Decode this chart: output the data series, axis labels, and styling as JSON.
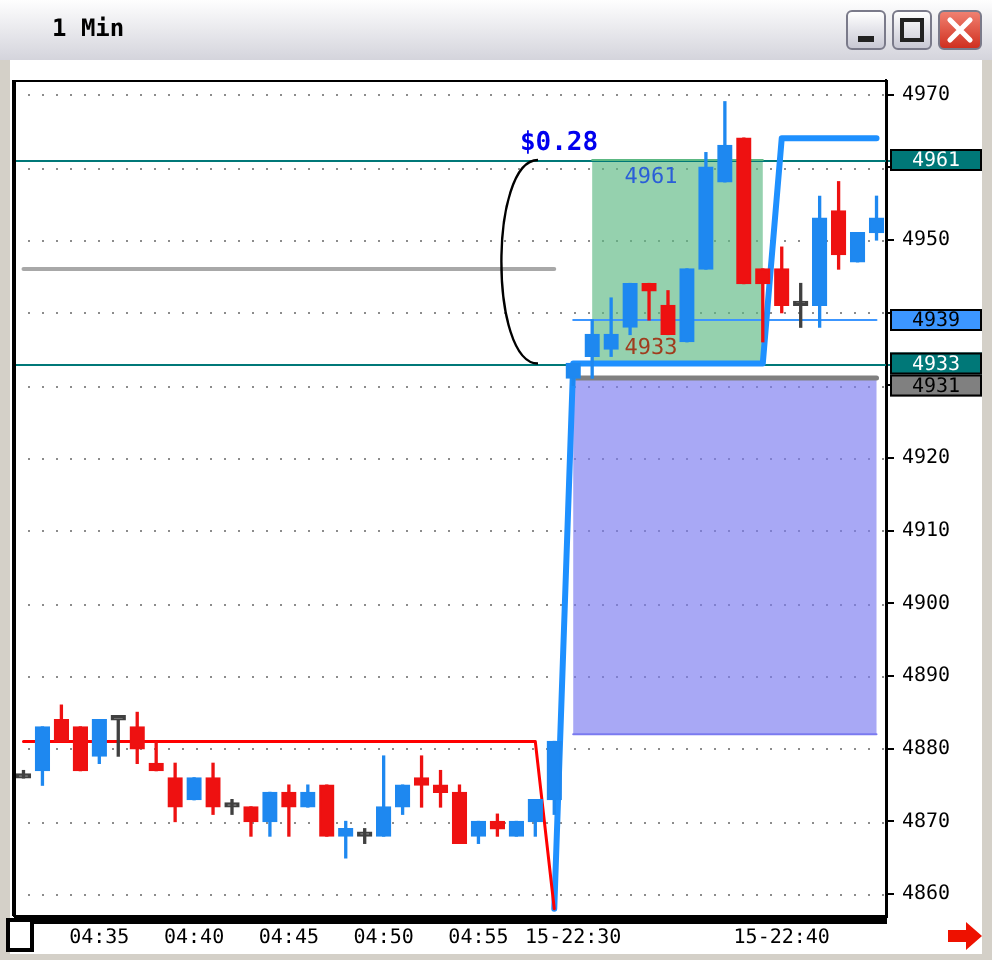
{
  "chart_data": {
    "type": "candlestick",
    "title": "1 Min",
    "categories": [
      null,
      null,
      null,
      null,
      "04:35",
      null,
      null,
      null,
      null,
      "04:40",
      null,
      null,
      null,
      null,
      "04:45",
      null,
      null,
      null,
      null,
      "04:50",
      null,
      null,
      null,
      null,
      "04:55",
      null,
      null,
      null,
      null,
      "15-22:30",
      null,
      null,
      null,
      null,
      null,
      null,
      null,
      null,
      null,
      null,
      "15-22:40",
      null,
      null,
      null,
      null,
      null
    ],
    "ohlc": [
      [
        4876,
        4877,
        4876,
        4876
      ],
      [
        4877,
        4883,
        4875,
        4883
      ],
      [
        4884,
        4886,
        4881,
        4881
      ],
      [
        4883,
        4883,
        4877,
        4877
      ],
      [
        4879,
        4884,
        4878,
        4884
      ],
      [
        4884,
        4884,
        4879,
        4884
      ],
      [
        4883,
        4885,
        4878,
        4880
      ],
      [
        4878,
        4881,
        4877,
        4877
      ],
      [
        4876,
        4878,
        4870,
        4872
      ],
      [
        4873,
        4876,
        4873,
        4876
      ],
      [
        4876,
        4878,
        4871,
        4872
      ],
      [
        4872,
        4873,
        4871,
        4872
      ],
      [
        4872,
        4872,
        4868,
        4870
      ],
      [
        4870,
        4874,
        4868,
        4874
      ],
      [
        4874,
        4875,
        4868,
        4872
      ],
      [
        4872,
        4875,
        4872,
        4874
      ],
      [
        4875,
        4875,
        4868,
        4868
      ],
      [
        4868,
        4870,
        4865,
        4869
      ],
      [
        4868,
        4869,
        4867,
        4868
      ],
      [
        4868,
        4879,
        4868,
        4872
      ],
      [
        4872,
        4875,
        4871,
        4875
      ],
      [
        4876,
        4879,
        4872,
        4875
      ],
      [
        4875,
        4877,
        4872,
        4874
      ],
      [
        4874,
        4875,
        4867,
        4867
      ],
      [
        4868,
        4870,
        4867,
        4870
      ],
      [
        4870,
        4871,
        4868,
        4869
      ],
      [
        4868,
        4870,
        4868,
        4870
      ],
      [
        4870,
        4873,
        4868,
        4873
      ],
      [
        4873,
        4881,
        4871,
        4881
      ],
      [
        4931,
        4933,
        4930,
        4933
      ],
      [
        4934,
        4939,
        4931,
        4937
      ],
      [
        4935,
        4942,
        4934,
        4937
      ],
      [
        4938,
        4944,
        4937,
        4944
      ],
      [
        4944,
        4944,
        4939,
        4943
      ],
      [
        4941,
        4943,
        4937,
        4937
      ],
      [
        4936,
        4946,
        4936,
        4946
      ],
      [
        4946,
        4962,
        4946,
        4960
      ],
      [
        4958,
        4969,
        4958,
        4963
      ],
      [
        4964,
        4964,
        4944,
        4944
      ],
      [
        4946,
        4946,
        4936,
        4944
      ],
      [
        4946,
        4949,
        4940,
        4941
      ],
      [
        4941,
        4944,
        4938,
        4941
      ],
      [
        4941,
        4956,
        4938,
        4953
      ],
      [
        4954,
        4958,
        4946,
        4948
      ],
      [
        4947,
        4951,
        4947,
        4951
      ],
      [
        4951,
        4956,
        4950,
        4953
      ]
    ],
    "colors": [
      "#404040",
      "#1e88f0",
      "#ee1111",
      "#ee1111",
      "#1e88f0",
      "#404040",
      "#ee1111",
      "#ee1111",
      "#ee1111",
      "#1e88f0",
      "#ee1111",
      "#404040",
      "#ee1111",
      "#1e88f0",
      "#ee1111",
      "#1e88f0",
      "#ee1111",
      "#1e88f0",
      "#404040",
      "#1e88f0",
      "#1e88f0",
      "#ee1111",
      "#ee1111",
      "#ee1111",
      "#1e88f0",
      "#ee1111",
      "#1e88f0",
      "#1e88f0",
      "#1e88f0",
      "#1e88f0",
      "#1e88f0",
      "#1e88f0",
      "#1e88f0",
      "#ee1111",
      "#ee1111",
      "#1e88f0",
      "#1e88f0",
      "#1e88f0",
      "#ee1111",
      "#ee1111",
      "#ee1111",
      "#404040",
      "#1e88f0",
      "#ee1111",
      "#1e88f0",
      "#1e88f0"
    ],
    "series": [
      {
        "type": "line",
        "color": "#ff0000",
        "values": [
          4881,
          4881,
          4881,
          4881,
          4881,
          4881,
          4881,
          4881,
          4881,
          4881,
          4881,
          4881,
          4881,
          4881,
          4881,
          4881,
          4881,
          4881,
          4881,
          4881,
          4881,
          4881,
          4881,
          4881,
          4881,
          4881,
          4881,
          4881,
          4858,
          null,
          null,
          null,
          null,
          null,
          null,
          null,
          null,
          null,
          null,
          null,
          null,
          null,
          null,
          null,
          null,
          null
        ]
      },
      {
        "type": "line",
        "color": "#1e90ff",
        "values": [
          null,
          null,
          null,
          null,
          null,
          null,
          null,
          null,
          null,
          null,
          null,
          null,
          null,
          null,
          null,
          null,
          null,
          null,
          null,
          null,
          null,
          null,
          null,
          null,
          null,
          null,
          null,
          null,
          4858,
          4933,
          4933,
          4933,
          4933,
          4933,
          4933,
          4933,
          4933,
          4933,
          4933,
          4933,
          4964,
          4964,
          4964,
          4964,
          4964,
          4964
        ]
      },
      {
        "type": "line",
        "color": "#a8a8a8",
        "values": [
          4946,
          4946,
          4946,
          4946,
          4946,
          4946,
          4946,
          4946,
          4946,
          4946,
          4946,
          4946,
          4946,
          4946,
          4946,
          4946,
          4946,
          4946,
          4946,
          4946,
          4946,
          4946,
          4946,
          4946,
          4946,
          4946,
          4946,
          4946,
          4946,
          null,
          null,
          null,
          null,
          null,
          null,
          null,
          null,
          null,
          null,
          null,
          null,
          null,
          null,
          null,
          null,
          null
        ]
      },
      {
        "type": "line",
        "color": "#3c96ff",
        "values": [
          null,
          null,
          null,
          null,
          null,
          null,
          null,
          null,
          null,
          null,
          null,
          null,
          null,
          null,
          null,
          null,
          null,
          null,
          null,
          null,
          null,
          null,
          null,
          null,
          null,
          null,
          null,
          null,
          null,
          4939,
          4939,
          4939,
          4939,
          4939,
          4939,
          4939,
          4939,
          4939,
          4939,
          4939,
          4939,
          4939,
          4939,
          4939,
          4939,
          4939
        ],
        "value_labels": [
          null,
          null,
          null,
          null,
          null,
          null,
          null,
          null,
          null,
          null,
          null,
          null,
          null,
          null,
          null,
          null,
          null,
          null,
          null,
          null,
          null,
          null,
          null,
          null,
          null,
          null,
          null,
          null,
          null,
          null,
          null,
          null,
          null,
          null,
          null,
          null,
          null,
          null,
          null,
          null,
          null,
          null,
          null,
          null,
          null,
          "4939"
        ]
      },
      {
        "type": "line",
        "color": "#808080",
        "values": [
          null,
          null,
          null,
          null,
          null,
          null,
          null,
          null,
          null,
          null,
          null,
          null,
          null,
          null,
          null,
          null,
          null,
          null,
          null,
          null,
          null,
          null,
          null,
          null,
          null,
          null,
          null,
          null,
          null,
          4931,
          4931,
          4931,
          4931,
          4931,
          4931,
          4931,
          4931,
          4931,
          4931,
          4931,
          4931,
          4931,
          4931,
          4931,
          4931,
          4931
        ],
        "value_labels": [
          null,
          null,
          null,
          null,
          null,
          null,
          null,
          null,
          null,
          null,
          null,
          null,
          null,
          null,
          null,
          null,
          null,
          null,
          null,
          null,
          null,
          null,
          null,
          null,
          null,
          null,
          null,
          null,
          null,
          null,
          null,
          null,
          null,
          null,
          null,
          null,
          null,
          null,
          null,
          null,
          null,
          null,
          null,
          null,
          null,
          "4931"
        ]
      },
      {
        "type": "line",
        "color": "#7a7af0",
        "values": [
          null,
          null,
          null,
          null,
          null,
          null,
          null,
          null,
          null,
          null,
          null,
          null,
          null,
          null,
          null,
          null,
          null,
          null,
          null,
          null,
          null,
          null,
          null,
          null,
          null,
          null,
          null,
          null,
          null,
          4882,
          4882,
          4882,
          4882,
          4882,
          4882,
          4882,
          4882,
          4882,
          4882,
          4882,
          4882,
          4882,
          4882,
          4882,
          4882,
          4882
        ],
        "lower": [
          null,
          null,
          null,
          null,
          null,
          null,
          null,
          null,
          null,
          null,
          null,
          null,
          null,
          null,
          null,
          null,
          null,
          null,
          null,
          null,
          null,
          null,
          null,
          null,
          null,
          null,
          null,
          null,
          null,
          4882,
          4882,
          4882,
          4882,
          4882,
          4882,
          4882,
          4882,
          4882,
          4882,
          4882,
          4882,
          4882,
          4882,
          4882,
          4882,
          4882
        ],
        "upper": [
          null,
          null,
          null,
          null,
          null,
          null,
          null,
          null,
          null,
          null,
          null,
          null,
          null,
          null,
          null,
          null,
          null,
          null,
          null,
          null,
          null,
          null,
          null,
          null,
          null,
          null,
          null,
          null,
          null,
          4931,
          4931,
          4931,
          4931,
          4931,
          4931,
          4931,
          4931,
          4931,
          4931,
          4931,
          4931,
          4931,
          4931,
          4931,
          4931,
          4931
        ]
      },
      {
        "type": "line",
        "color": "#5cb882",
        "values": [
          null,
          null,
          null,
          null,
          null,
          null,
          null,
          null,
          null,
          null,
          null,
          null,
          null,
          null,
          null,
          null,
          null,
          null,
          null,
          null,
          null,
          null,
          null,
          null,
          null,
          null,
          null,
          null,
          null,
          null,
          4961,
          4961,
          4961,
          4961,
          4961,
          4961,
          4961,
          4961,
          4961,
          4961,
          null,
          null,
          null,
          null,
          null,
          null
        ],
        "lower": [
          null,
          null,
          null,
          null,
          null,
          null,
          null,
          null,
          null,
          null,
          null,
          null,
          null,
          null,
          null,
          null,
          null,
          null,
          null,
          null,
          null,
          null,
          null,
          null,
          null,
          null,
          null,
          null,
          null,
          null,
          4933,
          4933,
          4933,
          4933,
          4933,
          4933,
          4933,
          4933,
          4933,
          4933,
          null,
          null,
          null,
          null,
          null,
          null
        ],
        "upper": [
          null,
          null,
          null,
          null,
          null,
          null,
          null,
          null,
          null,
          null,
          null,
          null,
          null,
          null,
          null,
          null,
          null,
          null,
          null,
          null,
          null,
          null,
          null,
          null,
          null,
          null,
          null,
          null,
          null,
          null,
          4961,
          4961,
          4961,
          4961,
          4961,
          4961,
          4961,
          4961,
          4961,
          4961,
          null,
          null,
          null,
          null,
          null,
          null
        ]
      }
    ],
    "ylim": [
      4857,
      4972
    ],
    "yticks": [
      4860,
      4870,
      4880,
      4890,
      4900,
      4910,
      4920,
      {
        "value": 4930,
        "label": null
      },
      {
        "value": 4940,
        "label": null
      },
      4950,
      {
        "value": 4960,
        "label": null
      },
      4970
    ],
    "ref_lines": [
      {
        "axis": "y",
        "value": 4961,
        "label": "4961",
        "color": "#007878"
      },
      {
        "axis": "y",
        "value": 4933,
        "label": "4933",
        "color": "#007878"
      }
    ],
    "annotations": [
      {
        "text": "$0.28",
        "y": 4961
      },
      {
        "text": "4961",
        "y": 4961
      },
      {
        "text": "4933",
        "y": 4933
      }
    ],
    "grid": "y"
  }
}
